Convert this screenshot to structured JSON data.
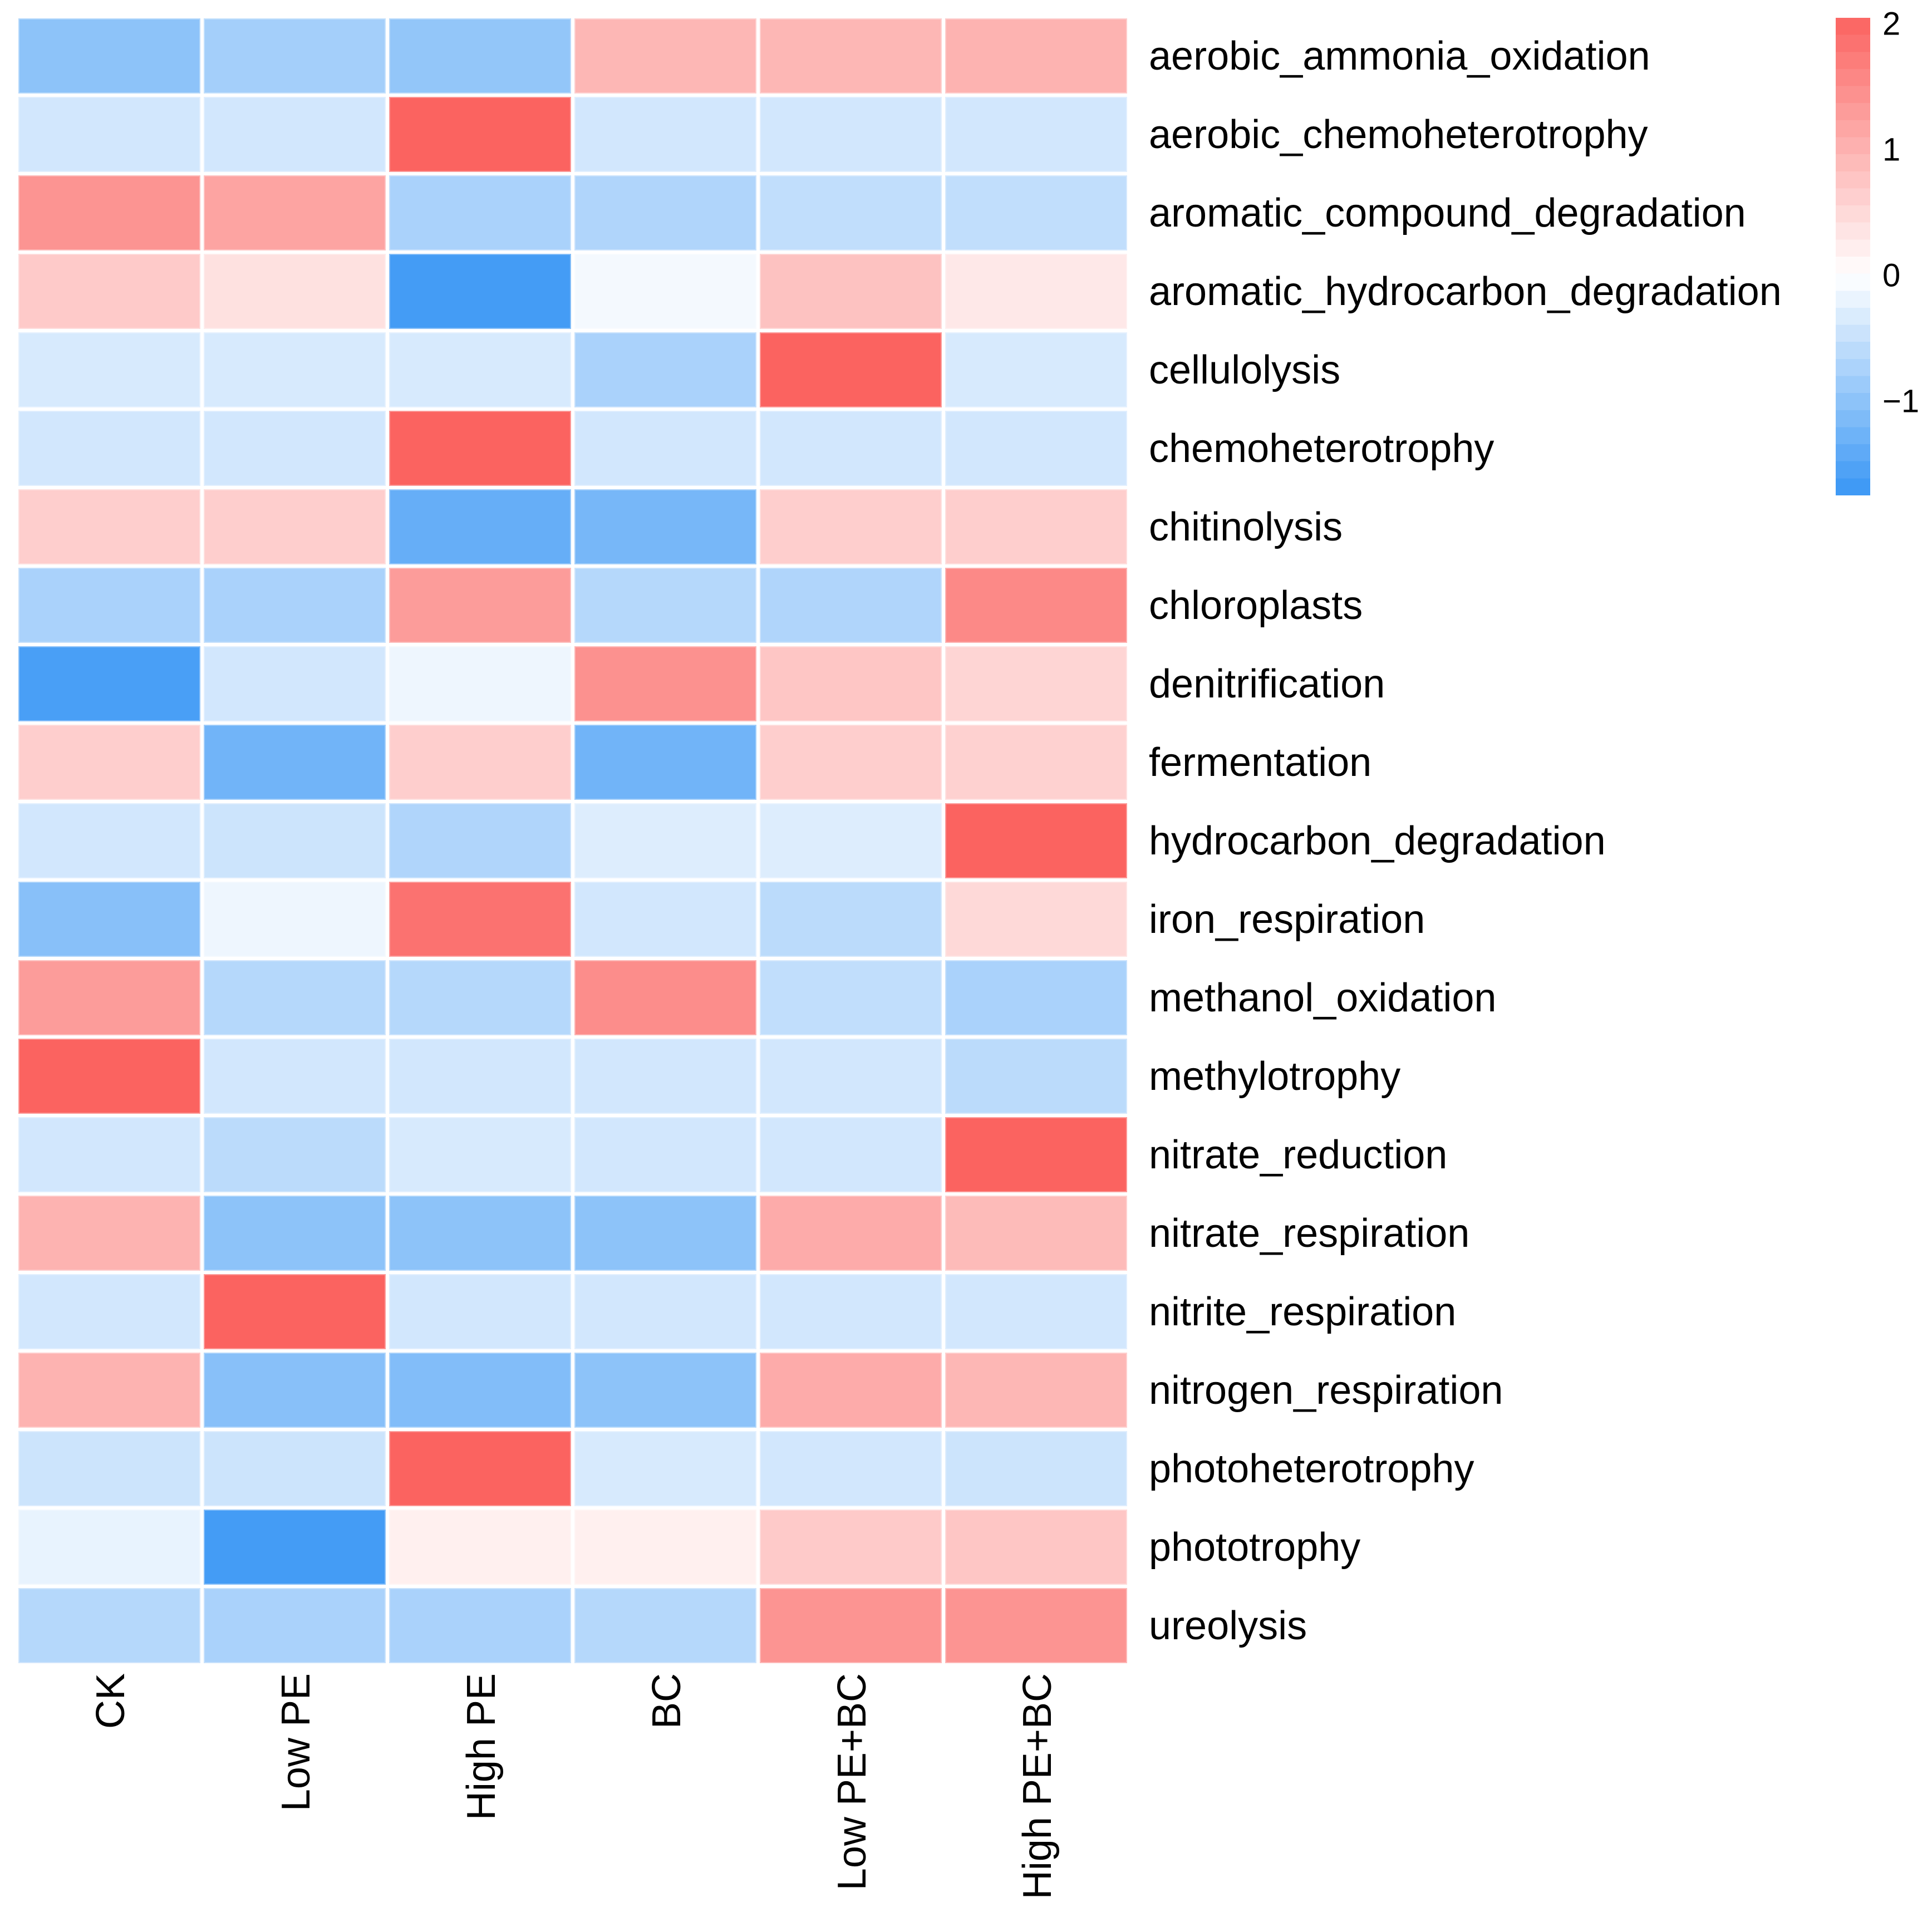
{
  "chart_data": {
    "type": "heatmap",
    "title": "",
    "xlabel": "",
    "ylabel": "",
    "x_categories": [
      "CK",
      "Low PE",
      "High PE",
      "BC",
      "Low PE+BC",
      "High PE+BC"
    ],
    "y_categories": [
      "aerobic_ammonia_oxidation",
      "aerobic_chemoheterotrophy",
      "aromatic_compound_degradation",
      "aromatic_hydrocarbon_degradation",
      "cellulolysis",
      "chemoheterotrophy",
      "chitinolysis",
      "chloroplasts",
      "denitrification",
      "fermentation",
      "hydrocarbon_degradation",
      "iron_respiration",
      "methanol_oxidation",
      "methylotrophy",
      "nitrate_reduction",
      "nitrate_respiration",
      "nitrite_respiration",
      "nitrogen_respiration",
      "photoheterotrophy",
      "phototrophy",
      "ureolysis"
    ],
    "values": [
      [
        -1.0,
        -0.8,
        -0.95,
        0.95,
        0.95,
        1.0
      ],
      [
        -0.4,
        -0.4,
        2.05,
        -0.4,
        -0.4,
        -0.4
      ],
      [
        1.4,
        1.2,
        -0.75,
        -0.7,
        -0.55,
        -0.55
      ],
      [
        0.7,
        0.4,
        -1.65,
        -0.1,
        0.8,
        0.3
      ],
      [
        -0.35,
        -0.35,
        -0.35,
        -0.75,
        2.05,
        -0.35
      ],
      [
        -0.4,
        -0.4,
        2.05,
        -0.4,
        -0.4,
        -0.4
      ],
      [
        0.65,
        0.65,
        -1.35,
        -1.2,
        0.65,
        0.65
      ],
      [
        -0.75,
        -0.75,
        1.3,
        -0.65,
        -0.7,
        1.55
      ],
      [
        -1.6,
        -0.4,
        -0.15,
        1.45,
        0.75,
        0.55
      ],
      [
        0.65,
        -1.25,
        0.65,
        -1.25,
        0.65,
        0.6
      ],
      [
        -0.4,
        -0.45,
        -0.7,
        -0.3,
        -0.3,
        2.05
      ],
      [
        -1.05,
        -0.15,
        1.85,
        -0.4,
        -0.6,
        0.5
      ],
      [
        1.3,
        -0.65,
        -0.65,
        1.5,
        -0.55,
        -0.75
      ],
      [
        2.05,
        -0.4,
        -0.4,
        -0.4,
        -0.4,
        -0.6
      ],
      [
        -0.4,
        -0.6,
        -0.35,
        -0.4,
        -0.4,
        2.05
      ],
      [
        1.0,
        -1.0,
        -1.0,
        -1.0,
        1.1,
        0.9
      ],
      [
        -0.4,
        2.05,
        -0.4,
        -0.4,
        -0.4,
        -0.4
      ],
      [
        1.0,
        -1.05,
        -1.1,
        -1.0,
        1.1,
        0.95
      ],
      [
        -0.45,
        -0.45,
        2.05,
        -0.35,
        -0.4,
        -0.45
      ],
      [
        -0.2,
        -1.65,
        0.2,
        0.2,
        0.7,
        0.75
      ],
      [
        -0.65,
        -0.75,
        -0.75,
        -0.65,
        1.4,
        1.4
      ]
    ],
    "value_meaning": "row-scaled z-score",
    "grid": false,
    "legend_position": "top-right",
    "colorbar": {
      "ticks": [
        {
          "label": "2",
          "value": 2
        },
        {
          "label": "1",
          "value": 1
        },
        {
          "label": "0",
          "value": 0
        },
        {
          "label": "−1",
          "value": -1
        }
      ],
      "vmax": 2.05,
      "vmin": -1.75,
      "color_max": "#FB6360",
      "color_zero": "#FFFFFF",
      "color_min": "#3E99F5",
      "red_domain": 2.05,
      "blue_domain": 1.7,
      "bands": 28
    }
  }
}
